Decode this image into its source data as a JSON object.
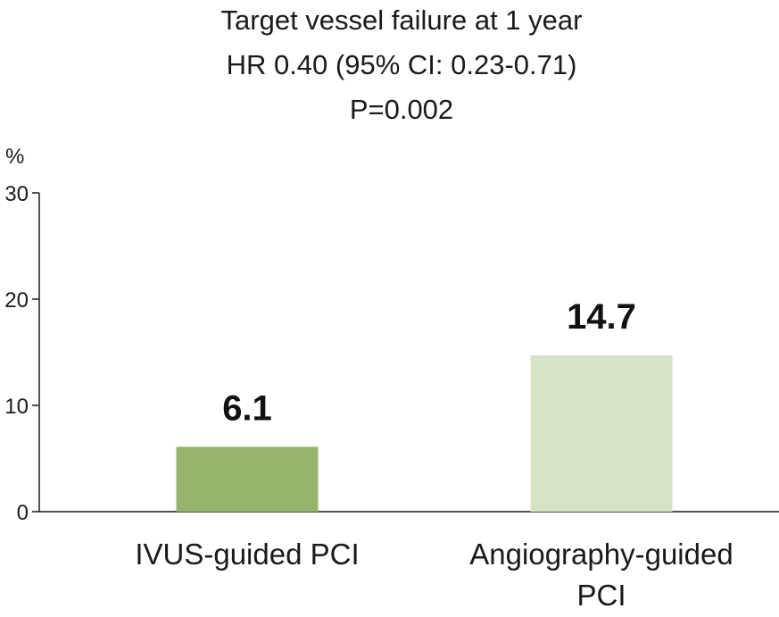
{
  "chart_data": {
    "type": "bar",
    "title": [
      "Target vessel failure at 1 year",
      "HR 0.40 (95% CI: 0.23-0.71)",
      "P=0.002"
    ],
    "ylabel": "%",
    "xlabel": "",
    "ylim": [
      0,
      30
    ],
    "yticks": [
      0,
      10,
      20,
      30
    ],
    "categories": [
      [
        "IVUS-guided PCI"
      ],
      [
        "Angiography-guided",
        "PCI"
      ]
    ],
    "values": [
      6.1,
      14.7
    ],
    "value_labels": [
      "6.1",
      "14.7"
    ],
    "colors": [
      "#94b56b",
      "#d6e3c4"
    ],
    "grid": false,
    "legend": "none"
  }
}
